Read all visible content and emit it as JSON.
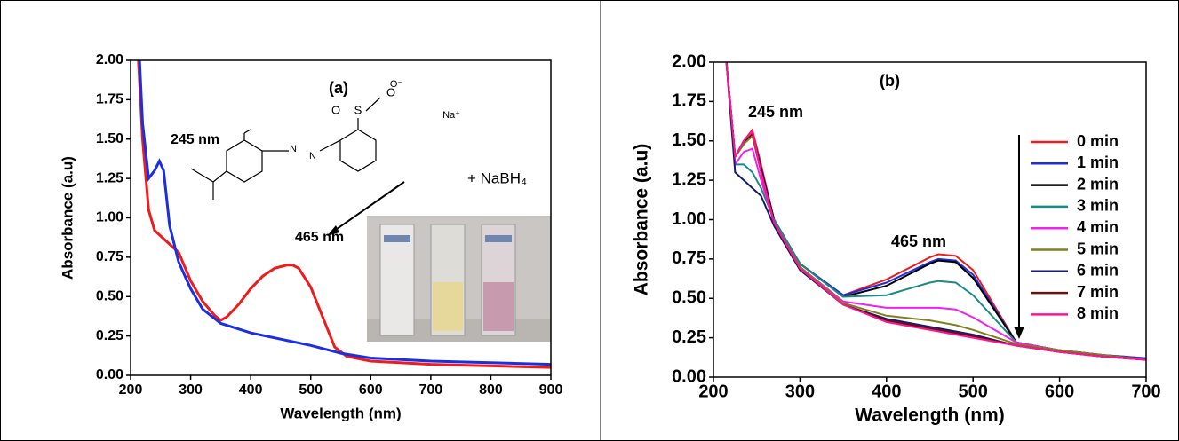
{
  "chart_data": [
    {
      "type": "line",
      "xlabel": "Wavelength (nm)",
      "ylabel": "Absorbance (a.u)",
      "xlim": [
        200,
        900
      ],
      "xticks": [
        200,
        300,
        400,
        500,
        600,
        700,
        800,
        900
      ],
      "ylim": [
        0,
        2
      ],
      "yticks": [
        {
          "value": 0,
          "label": "0.00"
        },
        {
          "value": 0.25,
          "label": "0.25"
        },
        {
          "value": 0.5,
          "label": "0.50"
        },
        {
          "value": 0.75,
          "label": "0.75"
        },
        {
          "value": 1,
          "label": "1.00"
        },
        {
          "value": 1.25,
          "label": "1.25"
        },
        {
          "value": 1.5,
          "label": "1.50"
        },
        {
          "value": 1.75,
          "label": "1.75"
        },
        {
          "value": 2,
          "label": "2.00"
        }
      ],
      "annotations": [
        "(a)",
        "245 nm",
        "465 nm",
        "+  NaBH₄"
      ],
      "structure_labels": [
        "O",
        "S",
        "O",
        "O⁻",
        "Na⁺",
        "N",
        "N"
      ],
      "series": [
        {
          "color": "#ee1c1c",
          "x": [
            213,
            220,
            230,
            240,
            260,
            280,
            300,
            320,
            340,
            350,
            360,
            380,
            400,
            420,
            440,
            460,
            470,
            480,
            500,
            520,
            540,
            560,
            600,
            700,
            800,
            900
          ],
          "values": [
            2.0,
            1.5,
            1.05,
            0.92,
            0.85,
            0.78,
            0.6,
            0.47,
            0.38,
            0.35,
            0.37,
            0.45,
            0.55,
            0.63,
            0.68,
            0.7,
            0.7,
            0.68,
            0.56,
            0.37,
            0.18,
            0.12,
            0.09,
            0.07,
            0.06,
            0.05
          ]
        },
        {
          "color": "#1c2fe0",
          "x": [
            215,
            220,
            230,
            240,
            248,
            255,
            265,
            280,
            300,
            320,
            350,
            400,
            450,
            500,
            550,
            600,
            700,
            800,
            900
          ],
          "values": [
            2.0,
            1.6,
            1.25,
            1.3,
            1.36,
            1.3,
            0.95,
            0.72,
            0.55,
            0.42,
            0.33,
            0.27,
            0.23,
            0.19,
            0.14,
            0.11,
            0.09,
            0.08,
            0.07
          ]
        }
      ]
    },
    {
      "type": "line",
      "xlabel": "Wavelength (nm)",
      "ylabel": "Absorbance (a.u)",
      "xlim": [
        200,
        700
      ],
      "xticks": [
        200,
        300,
        400,
        500,
        600,
        700
      ],
      "ylim": [
        0,
        2
      ],
      "yticks": [
        {
          "value": 0,
          "label": "0.00"
        },
        {
          "value": 0.25,
          "label": "0.25"
        },
        {
          "value": 0.5,
          "label": "0.50"
        },
        {
          "value": 0.75,
          "label": "0.75"
        },
        {
          "value": 1,
          "label": "1.00"
        },
        {
          "value": 1.25,
          "label": "1.25"
        },
        {
          "value": 1.5,
          "label": "1.50"
        },
        {
          "value": 1.75,
          "label": "1.75"
        },
        {
          "value": 2,
          "label": "2.00"
        }
      ],
      "annotations": [
        "(b)",
        "245 nm",
        "465 nm"
      ],
      "x": [
        215,
        225,
        235,
        245,
        255,
        270,
        300,
        350,
        400,
        450,
        460,
        480,
        500,
        550,
        600,
        650,
        700
      ],
      "series": [
        {
          "name": "0 min",
          "color": "#ee1c1c",
          "values": [
            2.0,
            1.4,
            1.5,
            1.57,
            1.35,
            1.0,
            0.72,
            0.52,
            0.62,
            0.76,
            0.78,
            0.77,
            0.68,
            0.22,
            0.17,
            0.14,
            0.12
          ]
        },
        {
          "name": "1 min",
          "color": "#1c2fe0",
          "values": [
            2.0,
            1.4,
            1.48,
            1.55,
            1.33,
            1.0,
            0.72,
            0.52,
            0.6,
            0.73,
            0.75,
            0.74,
            0.65,
            0.22,
            0.17,
            0.14,
            0.12
          ]
        },
        {
          "name": "2 min",
          "color": "#000000",
          "values": [
            2.0,
            1.4,
            1.48,
            1.55,
            1.32,
            1.0,
            0.72,
            0.51,
            0.58,
            0.72,
            0.74,
            0.73,
            0.63,
            0.22,
            0.17,
            0.14,
            0.11
          ]
        },
        {
          "name": "3 min",
          "color": "#1a8a85",
          "values": [
            2.0,
            1.35,
            1.35,
            1.3,
            1.2,
            1.0,
            0.72,
            0.51,
            0.52,
            0.6,
            0.61,
            0.6,
            0.52,
            0.22,
            0.17,
            0.14,
            0.11
          ]
        },
        {
          "name": "4 min",
          "color": "#ee22ee",
          "values": [
            2.0,
            1.35,
            1.43,
            1.45,
            1.25,
            0.98,
            0.7,
            0.48,
            0.44,
            0.44,
            0.44,
            0.43,
            0.38,
            0.22,
            0.17,
            0.14,
            0.11
          ]
        },
        {
          "name": "5 min",
          "color": "#808020",
          "values": [
            2.0,
            1.4,
            1.48,
            1.53,
            1.3,
            0.98,
            0.7,
            0.47,
            0.39,
            0.36,
            0.35,
            0.33,
            0.3,
            0.21,
            0.17,
            0.14,
            0.11
          ]
        },
        {
          "name": "6 min",
          "color": "#141a6e",
          "values": [
            2.0,
            1.3,
            1.25,
            1.2,
            1.15,
            0.96,
            0.68,
            0.46,
            0.37,
            0.32,
            0.31,
            0.29,
            0.27,
            0.2,
            0.16,
            0.13,
            0.11
          ]
        },
        {
          "name": "7 min",
          "color": "#6b1010",
          "values": [
            2.0,
            1.4,
            1.5,
            1.55,
            1.3,
            0.98,
            0.69,
            0.46,
            0.36,
            0.31,
            0.3,
            0.28,
            0.26,
            0.2,
            0.16,
            0.13,
            0.11
          ]
        },
        {
          "name": "8 min",
          "color": "#ff1493",
          "values": [
            2.0,
            1.4,
            1.5,
            1.56,
            1.3,
            0.98,
            0.69,
            0.46,
            0.35,
            0.3,
            0.29,
            0.27,
            0.25,
            0.2,
            0.16,
            0.13,
            0.11
          ]
        }
      ]
    }
  ]
}
